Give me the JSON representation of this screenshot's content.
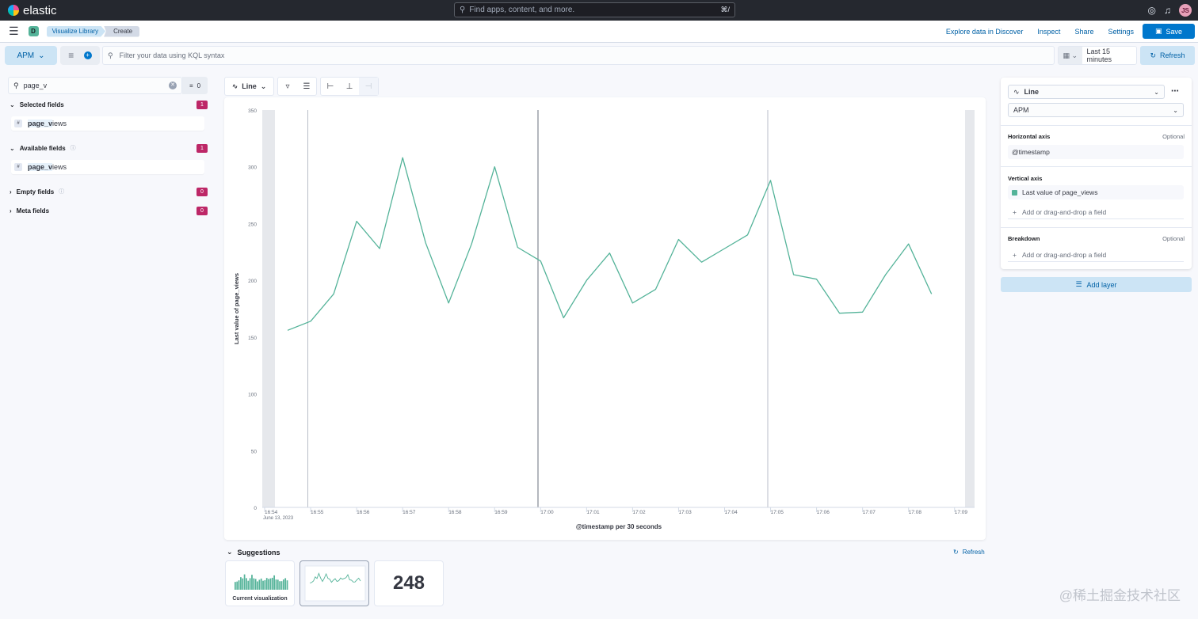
{
  "header": {
    "brand": "elastic",
    "search_placeholder": "Find apps, content, and more.",
    "search_shortcut": "⌘/",
    "avatar_initials": "JS"
  },
  "subbar": {
    "space_initial": "D",
    "breadcrumbs": [
      "Visualize Library",
      "Create"
    ],
    "links": [
      "Explore data in Discover",
      "Inspect",
      "Share",
      "Settings"
    ],
    "save_label": "Save"
  },
  "querybar": {
    "data_view": "APM",
    "kql_placeholder": "Filter your data using KQL syntax",
    "time_range": "Last 15 minutes",
    "refresh_label": "Refresh"
  },
  "sidebar": {
    "search_value": "page_v",
    "filter_count": "0",
    "sections": [
      {
        "label": "Selected fields",
        "count": "1",
        "info": false
      },
      {
        "label": "Available fields",
        "count": "1",
        "info": true
      },
      {
        "label": "Empty fields",
        "count": "0",
        "info": true
      },
      {
        "label": "Meta fields",
        "count": "0",
        "info": false
      }
    ],
    "fields": [
      {
        "type": "#",
        "highlight": "page_v",
        "rest": "iews"
      },
      {
        "type": "#",
        "highlight": "page_v",
        "rest": "iews"
      }
    ]
  },
  "workspace": {
    "chart_type_label": "Line"
  },
  "chart_data": {
    "type": "line",
    "xlabel": "@timestamp per 30 seconds",
    "ylabel": "Last value of page_views",
    "ylim": [
      0,
      350
    ],
    "yticks": [
      0,
      50,
      100,
      150,
      200,
      250,
      300,
      350
    ],
    "x_tick_labels": [
      "16:54",
      "16:55",
      "16:56",
      "16:57",
      "16:58",
      "16:59",
      "17:00",
      "17:01",
      "17:02",
      "17:03",
      "17:04",
      "17:05",
      "17:06",
      "17:07",
      "17:08",
      "17:09"
    ],
    "x_start_date_label": "June 13, 2023",
    "series": [
      {
        "values": [
          156,
          164,
          188,
          252,
          228,
          308,
          233,
          180,
          232,
          300,
          229,
          217,
          167,
          200,
          224,
          180,
          192,
          236,
          216,
          228,
          240,
          288,
          205,
          201,
          171,
          172,
          205,
          232,
          188
        ],
        "color": "#54b399"
      }
    ],
    "grid": false,
    "accent_color": "#54b399"
  },
  "suggestions": {
    "title": "Suggestions",
    "refresh_label": "Refresh",
    "cards": [
      {
        "label": "Current visualization"
      },
      {
        "label": ""
      },
      {
        "metric": "248"
      }
    ]
  },
  "config": {
    "chart_type": "Line",
    "data_view": "APM",
    "horizontal_axis": {
      "label": "Horizontal axis",
      "optional": "Optional",
      "value": "@timestamp"
    },
    "vertical_axis": {
      "label": "Vertical axis",
      "value": "Last value of page_views",
      "add": "Add or drag-and-drop a field"
    },
    "breakdown": {
      "label": "Breakdown",
      "optional": "Optional",
      "add": "Add or drag-and-drop a field"
    },
    "add_layer": "Add layer"
  },
  "watermark": "@稀土掘金技术社区"
}
